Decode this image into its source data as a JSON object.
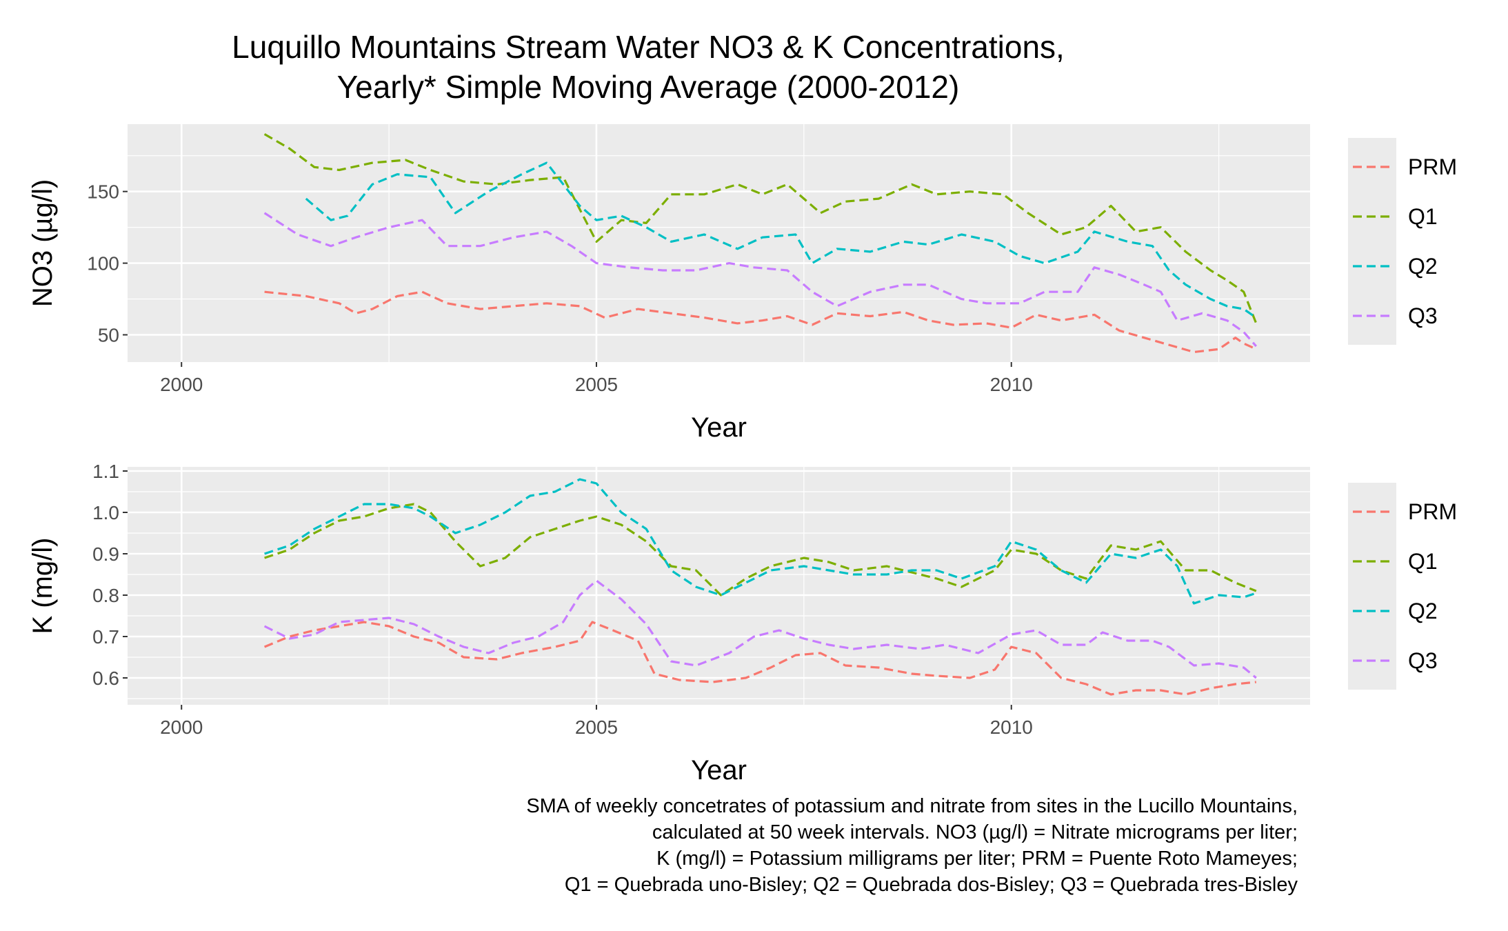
{
  "title": {
    "line1": "Luquillo Mountains Stream Water NO3 & K Concentrations,",
    "line2": "Yearly* Simple Moving Average (2000-2012)"
  },
  "caption": {
    "lines": [
      "SMA of weekly concetrates of potassium and nitrate from sites in the Lucillo Mountains,",
      "calculated at 50 week intervals. NO3 (µg/l) = Nitrate micrograms per liter;",
      "K (mg/l) = Potassium milligrams per liter; PRM = Puente Roto Mameyes;",
      "Q1 = Quebrada uno-Bisley; Q2 = Quebrada dos-Bisley; Q3 = Quebrada tres-Bisley"
    ]
  },
  "colors": {
    "PRM": "#F8766D",
    "Q1": "#7CAE00",
    "Q2": "#00BFC4",
    "Q3": "#C77CFF",
    "panel_bg": "#EBEBEB",
    "grid": "#FFFFFF"
  },
  "chart_data": [
    {
      "type": "line",
      "xlabel": "Year",
      "ylabel": "NO3 (µg/l)",
      "xlim": [
        1999.35,
        2013.6
      ],
      "ylim": [
        31,
        197
      ],
      "x_ticks": [
        2000,
        2005,
        2010
      ],
      "x_tick_labels": [
        "2000",
        "2005",
        "2010"
      ],
      "y_ticks": [
        50,
        100,
        150
      ],
      "y_tick_labels": [
        "50",
        "100",
        "150"
      ],
      "legend_position": "right",
      "line_style": "dashed",
      "series": [
        {
          "name": "PRM",
          "x": [
            2001.0,
            2001.5,
            2001.9,
            2002.1,
            2002.3,
            2002.6,
            2002.9,
            2003.2,
            2003.6,
            2004.0,
            2004.4,
            2004.8,
            2005.1,
            2005.5,
            2005.9,
            2006.3,
            2006.7,
            2007.0,
            2007.3,
            2007.6,
            2007.9,
            2008.3,
            2008.7,
            2009.0,
            2009.3,
            2009.7,
            2010.0,
            2010.3,
            2010.6,
            2011.0,
            2011.3,
            2011.6,
            2011.9,
            2012.2,
            2012.5,
            2012.7,
            2012.8,
            2012.95
          ],
          "y": [
            80,
            77,
            72,
            65,
            68,
            77,
            80,
            72,
            68,
            70,
            72,
            70,
            62,
            68,
            65,
            62,
            58,
            60,
            63,
            57,
            65,
            63,
            66,
            60,
            57,
            58,
            55,
            64,
            60,
            64,
            53,
            48,
            43,
            38,
            40,
            48,
            44,
            40
          ]
        },
        {
          "name": "Q1",
          "x": [
            2001.0,
            2001.3,
            2001.6,
            2001.9,
            2002.3,
            2002.7,
            2003.0,
            2003.4,
            2003.8,
            2004.2,
            2004.6,
            2005.0,
            2005.3,
            2005.6,
            2005.9,
            2006.3,
            2006.7,
            2007.0,
            2007.3,
            2007.7,
            2008.0,
            2008.4,
            2008.8,
            2009.1,
            2009.5,
            2009.9,
            2010.2,
            2010.6,
            2010.9,
            2011.2,
            2011.5,
            2011.8,
            2012.1,
            2012.4,
            2012.6,
            2012.8,
            2012.95
          ],
          "y": [
            190,
            180,
            167,
            165,
            170,
            172,
            165,
            157,
            155,
            158,
            160,
            115,
            130,
            128,
            148,
            148,
            155,
            148,
            155,
            135,
            143,
            145,
            155,
            148,
            150,
            148,
            135,
            120,
            125,
            140,
            122,
            125,
            108,
            95,
            88,
            80,
            58
          ]
        },
        {
          "name": "Q2",
          "x": [
            2001.5,
            2001.8,
            2002.0,
            2002.3,
            2002.6,
            2003.0,
            2003.3,
            2003.7,
            2004.1,
            2004.4,
            2004.8,
            2005.0,
            2005.3,
            2005.6,
            2005.9,
            2006.3,
            2006.7,
            2007.0,
            2007.4,
            2007.6,
            2007.9,
            2008.3,
            2008.7,
            2009.0,
            2009.4,
            2009.8,
            2010.1,
            2010.4,
            2010.8,
            2011.0,
            2011.4,
            2011.7,
            2011.9,
            2012.1,
            2012.4,
            2012.6,
            2012.8,
            2012.95
          ],
          "y": [
            145,
            130,
            133,
            155,
            162,
            160,
            135,
            150,
            162,
            170,
            140,
            130,
            133,
            125,
            115,
            120,
            110,
            118,
            120,
            100,
            110,
            108,
            115,
            113,
            120,
            115,
            105,
            100,
            108,
            122,
            115,
            112,
            95,
            85,
            75,
            70,
            68,
            62
          ]
        },
        {
          "name": "Q3",
          "x": [
            2001.0,
            2001.4,
            2001.8,
            2002.1,
            2002.5,
            2002.9,
            2003.2,
            2003.6,
            2004.0,
            2004.4,
            2004.7,
            2005.0,
            2005.4,
            2005.8,
            2006.2,
            2006.6,
            2006.9,
            2007.3,
            2007.6,
            2007.9,
            2008.3,
            2008.7,
            2009.0,
            2009.4,
            2009.7,
            2010.1,
            2010.4,
            2010.8,
            2011.0,
            2011.3,
            2011.6,
            2011.8,
            2012.0,
            2012.3,
            2012.6,
            2012.8,
            2012.95
          ],
          "y": [
            135,
            120,
            112,
            118,
            125,
            130,
            112,
            112,
            118,
            122,
            112,
            100,
            97,
            95,
            95,
            100,
            97,
            95,
            80,
            70,
            80,
            85,
            85,
            75,
            72,
            72,
            80,
            80,
            97,
            92,
            85,
            80,
            60,
            65,
            60,
            52,
            42
          ]
        }
      ]
    },
    {
      "type": "line",
      "xlabel": "Year",
      "ylabel": "K (mg/l)",
      "xlim": [
        1999.35,
        2013.6
      ],
      "ylim": [
        0.535,
        1.11
      ],
      "x_ticks": [
        2000,
        2005,
        2010
      ],
      "x_tick_labels": [
        "2000",
        "2005",
        "2010"
      ],
      "y_ticks": [
        0.6,
        0.7,
        0.8,
        0.9,
        1.0,
        1.1
      ],
      "y_tick_labels": [
        "0.6",
        "0.7",
        "0.8",
        "0.9",
        "1.0",
        "1.1"
      ],
      "legend_position": "right",
      "line_style": "dashed",
      "series": [
        {
          "name": "PRM",
          "x": [
            2001.0,
            2001.3,
            2001.6,
            2001.9,
            2002.2,
            2002.5,
            2002.8,
            2003.1,
            2003.4,
            2003.8,
            2004.1,
            2004.5,
            2004.8,
            2004.95,
            2005.2,
            2005.5,
            2005.7,
            2006.0,
            2006.4,
            2006.8,
            2007.1,
            2007.4,
            2007.7,
            2008.0,
            2008.4,
            2008.8,
            2009.1,
            2009.5,
            2009.8,
            2010.0,
            2010.3,
            2010.6,
            2010.9,
            2011.2,
            2011.5,
            2011.8,
            2012.1,
            2012.4,
            2012.7,
            2012.95
          ],
          "y": [
            0.675,
            0.7,
            0.715,
            0.725,
            0.735,
            0.725,
            0.7,
            0.685,
            0.65,
            0.645,
            0.66,
            0.675,
            0.69,
            0.735,
            0.715,
            0.69,
            0.61,
            0.595,
            0.59,
            0.6,
            0.625,
            0.655,
            0.66,
            0.63,
            0.625,
            0.61,
            0.605,
            0.6,
            0.62,
            0.675,
            0.66,
            0.6,
            0.585,
            0.56,
            0.57,
            0.57,
            0.56,
            0.575,
            0.585,
            0.59
          ]
        },
        {
          "name": "Q1",
          "x": [
            2001.0,
            2001.3,
            2001.6,
            2001.9,
            2002.2,
            2002.5,
            2002.8,
            2003.0,
            2003.3,
            2003.6,
            2003.9,
            2004.2,
            2004.5,
            2004.8,
            2005.0,
            2005.3,
            2005.6,
            2005.9,
            2006.2,
            2006.5,
            2006.8,
            2007.1,
            2007.5,
            2007.8,
            2008.1,
            2008.5,
            2008.8,
            2009.1,
            2009.4,
            2009.8,
            2010.0,
            2010.3,
            2010.6,
            2010.9,
            2011.2,
            2011.5,
            2011.8,
            2012.1,
            2012.4,
            2012.7,
            2012.95
          ],
          "y": [
            0.89,
            0.91,
            0.95,
            0.98,
            0.99,
            1.01,
            1.02,
            1.0,
            0.93,
            0.87,
            0.89,
            0.94,
            0.96,
            0.98,
            0.99,
            0.97,
            0.93,
            0.87,
            0.86,
            0.8,
            0.84,
            0.87,
            0.89,
            0.88,
            0.86,
            0.87,
            0.855,
            0.84,
            0.82,
            0.86,
            0.91,
            0.9,
            0.86,
            0.84,
            0.92,
            0.91,
            0.93,
            0.86,
            0.86,
            0.83,
            0.81
          ]
        },
        {
          "name": "Q2",
          "x": [
            2001.0,
            2001.3,
            2001.6,
            2001.9,
            2002.2,
            2002.5,
            2002.8,
            2003.0,
            2003.3,
            2003.6,
            2003.9,
            2004.2,
            2004.5,
            2004.8,
            2005.0,
            2005.3,
            2005.6,
            2005.9,
            2006.2,
            2006.5,
            2006.8,
            2007.1,
            2007.5,
            2007.8,
            2008.1,
            2008.5,
            2008.8,
            2009.1,
            2009.4,
            2009.8,
            2010.0,
            2010.3,
            2010.6,
            2010.9,
            2011.2,
            2011.5,
            2011.8,
            2012.0,
            2012.2,
            2012.5,
            2012.8,
            2012.95
          ],
          "y": [
            0.9,
            0.92,
            0.96,
            0.99,
            1.02,
            1.02,
            1.01,
            0.99,
            0.95,
            0.97,
            1.0,
            1.04,
            1.05,
            1.08,
            1.07,
            1.0,
            0.96,
            0.86,
            0.82,
            0.8,
            0.83,
            0.86,
            0.87,
            0.86,
            0.85,
            0.85,
            0.86,
            0.86,
            0.84,
            0.87,
            0.93,
            0.91,
            0.86,
            0.83,
            0.9,
            0.89,
            0.91,
            0.87,
            0.78,
            0.8,
            0.795,
            0.805
          ]
        },
        {
          "name": "Q3",
          "x": [
            2001.0,
            2001.3,
            2001.6,
            2001.9,
            2002.2,
            2002.5,
            2002.8,
            2003.1,
            2003.4,
            2003.7,
            2004.0,
            2004.3,
            2004.6,
            2004.8,
            2005.0,
            2005.3,
            2005.6,
            2005.9,
            2006.2,
            2006.6,
            2006.9,
            2007.2,
            2007.5,
            2007.8,
            2008.1,
            2008.5,
            2008.9,
            2009.2,
            2009.6,
            2010.0,
            2010.3,
            2010.6,
            2010.9,
            2011.1,
            2011.4,
            2011.7,
            2011.9,
            2012.2,
            2012.5,
            2012.8,
            2012.95
          ],
          "y": [
            0.725,
            0.695,
            0.705,
            0.735,
            0.74,
            0.745,
            0.73,
            0.7,
            0.675,
            0.66,
            0.685,
            0.7,
            0.735,
            0.8,
            0.835,
            0.79,
            0.73,
            0.64,
            0.63,
            0.66,
            0.7,
            0.715,
            0.695,
            0.68,
            0.67,
            0.68,
            0.67,
            0.68,
            0.66,
            0.705,
            0.715,
            0.68,
            0.68,
            0.71,
            0.69,
            0.69,
            0.675,
            0.63,
            0.635,
            0.625,
            0.6
          ]
        }
      ]
    }
  ]
}
